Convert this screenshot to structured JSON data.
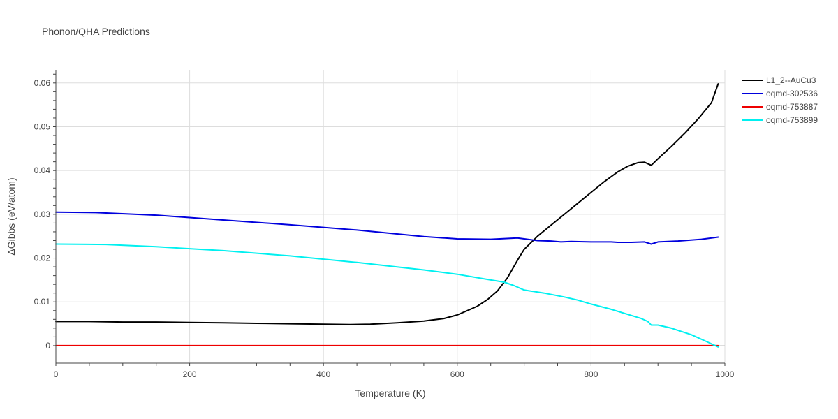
{
  "chart_data": {
    "type": "line",
    "title": "Phonon/QHA Predictions",
    "xlabel": "Temperature (K)",
    "ylabel": "ΔGibbs (eV/atom)",
    "xlim": [
      0,
      1000
    ],
    "ylim": [
      -0.004,
      0.063
    ],
    "xticks": [
      0,
      200,
      400,
      600,
      800,
      1000
    ],
    "xtick_labels": [
      "0",
      "200",
      "400",
      "600",
      "800",
      "1000"
    ],
    "yticks": [
      0,
      0.01,
      0.02,
      0.03,
      0.04,
      0.05,
      0.06
    ],
    "ytick_labels": [
      "0",
      "0.01",
      "0.02",
      "0.03",
      "0.04",
      "0.05",
      "0.06"
    ],
    "grid": true,
    "legend_position": "top-right",
    "series": [
      {
        "name": "L1_2--AuCu3",
        "color": "#000000",
        "x": [
          0,
          50,
          100,
          150,
          200,
          250,
          300,
          350,
          400,
          440,
          470,
          510,
          550,
          580,
          600,
          615,
          630,
          645,
          660,
          675,
          690,
          700,
          720,
          740,
          760,
          780,
          800,
          820,
          840,
          855,
          870,
          880,
          890,
          900,
          920,
          940,
          960,
          980,
          990
        ],
        "y": [
          0.0055,
          0.0055,
          0.0054,
          0.0054,
          0.0053,
          0.0052,
          0.0051,
          0.005,
          0.0049,
          0.0048,
          0.0049,
          0.0052,
          0.0056,
          0.0062,
          0.007,
          0.008,
          0.009,
          0.0105,
          0.0125,
          0.0155,
          0.0195,
          0.022,
          0.025,
          0.0275,
          0.03,
          0.0325,
          0.035,
          0.0375,
          0.0397,
          0.041,
          0.0418,
          0.0419,
          0.0412,
          0.0427,
          0.0455,
          0.0485,
          0.0518,
          0.0555,
          0.0598
        ]
      },
      {
        "name": "oqmd-302536",
        "color": "#0000dd",
        "x": [
          0,
          60,
          150,
          250,
          350,
          450,
          550,
          600,
          650,
          690,
          700,
          720,
          740,
          755,
          770,
          800,
          830,
          840,
          860,
          880,
          890,
          900,
          930,
          965,
          990
        ],
        "y": [
          0.0305,
          0.0304,
          0.0298,
          0.0287,
          0.0276,
          0.0264,
          0.0249,
          0.0244,
          0.0243,
          0.0246,
          0.0244,
          0.024,
          0.0239,
          0.0237,
          0.0238,
          0.0237,
          0.0237,
          0.0236,
          0.0236,
          0.0237,
          0.0232,
          0.0237,
          0.0239,
          0.0243,
          0.0248
        ]
      },
      {
        "name": "oqmd-753887",
        "color": "#ee0000",
        "x": [
          0,
          990
        ],
        "y": [
          0.0,
          0.0
        ]
      },
      {
        "name": "oqmd-753899",
        "color": "#00f0f0",
        "x": [
          0,
          75,
          150,
          250,
          350,
          450,
          550,
          600,
          650,
          670,
          685,
          700,
          730,
          760,
          780,
          800,
          830,
          860,
          875,
          885,
          890,
          900,
          920,
          950,
          970,
          990
        ],
        "y": [
          0.0232,
          0.0231,
          0.0226,
          0.0217,
          0.0205,
          0.019,
          0.0173,
          0.0163,
          0.015,
          0.0145,
          0.0137,
          0.0127,
          0.012,
          0.0111,
          0.0104,
          0.0095,
          0.0083,
          0.0069,
          0.0062,
          0.0055,
          0.0047,
          0.0047,
          0.004,
          0.0025,
          0.0011,
          -0.0003
        ]
      }
    ]
  }
}
